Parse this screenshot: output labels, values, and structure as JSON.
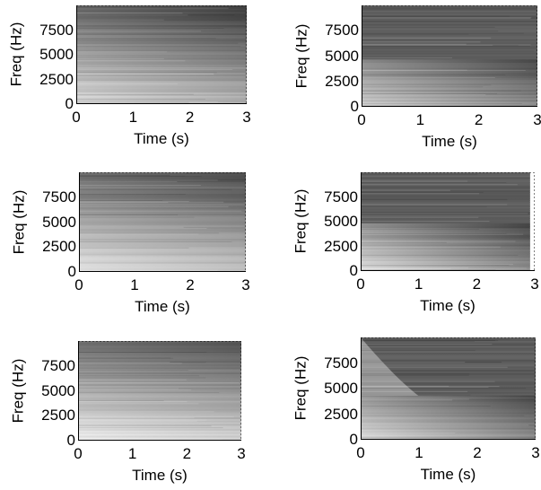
{
  "chart_data": [
    {
      "type": "heatmap",
      "xlabel": "Time (s)",
      "ylabel": "Freq (Hz)",
      "xlim": [
        0,
        3
      ],
      "ylim": [
        0,
        10000
      ],
      "xticks": [
        "0",
        "1",
        "2",
        "3"
      ],
      "yticks": [
        "0",
        "2500",
        "5000",
        "7500"
      ],
      "grid": false,
      "style": {
        "low_freq_bright": 0.85,
        "cutoff_hz": null,
        "decay": 0.15,
        "dark_top": 0.38
      }
    },
    {
      "type": "heatmap",
      "xlabel": "Time (s)",
      "ylabel": "Freq (Hz)",
      "xlim": [
        0,
        3
      ],
      "ylim": [
        0,
        10000
      ],
      "xticks": [
        "0",
        "1",
        "2",
        "3"
      ],
      "yticks": [
        "0",
        "2500",
        "5000",
        "7500"
      ],
      "grid": false,
      "style": {
        "low_freq_bright": 0.8,
        "cutoff_hz": 4600,
        "decay": 0.25,
        "dark_top": 0.36
      }
    },
    {
      "type": "heatmap",
      "xlabel": "Time (s)",
      "ylabel": "Freq (Hz)",
      "xlim": [
        0,
        3
      ],
      "ylim": [
        0,
        10000
      ],
      "xticks": [
        "0",
        "1",
        "2",
        "3"
      ],
      "yticks": [
        "0",
        "2500",
        "5000",
        "7500"
      ],
      "grid": false,
      "style": {
        "low_freq_bright": 0.88,
        "cutoff_hz": null,
        "decay": 0.12,
        "dark_top": 0.4
      }
    },
    {
      "type": "heatmap",
      "xlabel": "Time (s)",
      "ylabel": "Freq (Hz)",
      "xlim": [
        0,
        3
      ],
      "ylim": [
        0,
        10000
      ],
      "xticks": [
        "0",
        "1",
        "2",
        "3"
      ],
      "yticks": [
        "0",
        "2500",
        "5000",
        "7500"
      ],
      "grid": false,
      "style": {
        "low_freq_bright": 0.85,
        "cutoff_hz": 4800,
        "decay": 0.3,
        "dark_top": 0.36,
        "end_time": 2.92
      }
    },
    {
      "type": "heatmap",
      "xlabel": "Time (s)",
      "ylabel": "Freq (Hz)",
      "xlim": [
        0,
        3
      ],
      "ylim": [
        0,
        10000
      ],
      "xticks": [
        "0",
        "1",
        "2",
        "3"
      ],
      "yticks": [
        "0",
        "2500",
        "5000",
        "7500"
      ],
      "grid": false,
      "style": {
        "low_freq_bright": 0.92,
        "cutoff_hz": null,
        "decay": 0.1,
        "dark_top": 0.42
      }
    },
    {
      "type": "heatmap",
      "xlabel": "Time (s)",
      "ylabel": "Freq (Hz)",
      "xlim": [
        0,
        3
      ],
      "ylim": [
        0,
        10000
      ],
      "xticks": [
        "0",
        "1",
        "2",
        "3"
      ],
      "yticks": [
        "0",
        "2500",
        "5000",
        "7500"
      ],
      "grid": false,
      "style": {
        "low_freq_bright": 0.85,
        "cutoff_hz": 4300,
        "decay": 0.3,
        "dark_top": 0.36,
        "onset_burst": true
      }
    }
  ]
}
